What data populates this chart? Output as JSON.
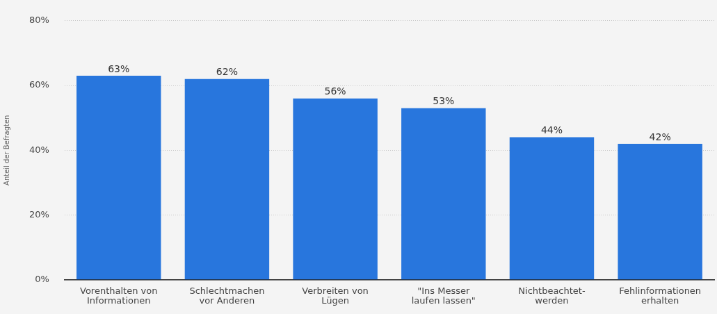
{
  "chart_data": {
    "type": "bar",
    "ylabel": "Anteil der Befragten",
    "categories": [
      "Vorenthalten von Informationen",
      "Schlechtmachen vor Anderen",
      "Verbreiten von Lügen",
      "\"Ins Messer laufen lassen\"",
      "Nichtbeachtet-werden",
      "Fehlinformationen erhalten"
    ],
    "values": [
      63,
      62,
      56,
      53,
      44,
      42
    ],
    "value_labels": [
      "63%",
      "62%",
      "56%",
      "53%",
      "44%",
      "42%"
    ],
    "color": "#2876dd",
    "ylim": [
      0,
      80
    ],
    "yticks": [
      {
        "value": 0,
        "label": "0%"
      },
      {
        "value": 20,
        "label": "20%"
      },
      {
        "value": 40,
        "label": "40%"
      },
      {
        "value": 60,
        "label": "60%"
      },
      {
        "value": 80,
        "label": "80%"
      }
    ],
    "grid": "y",
    "legend": false
  }
}
